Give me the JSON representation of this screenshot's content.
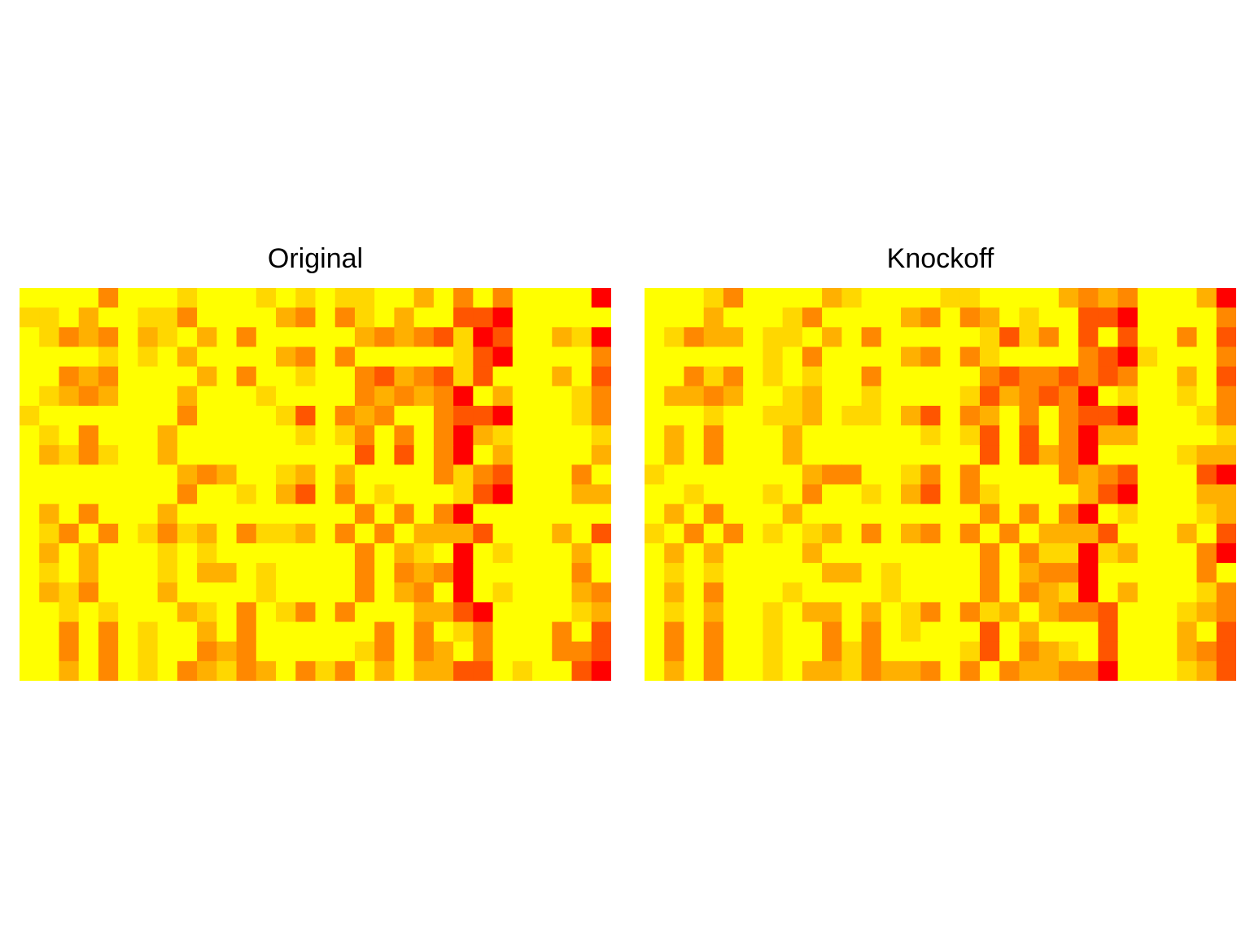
{
  "chart_data": [
    {
      "type": "heatmap",
      "title": "Original",
      "colors": [
        "#FFFF00",
        "#FFD700",
        "#FFB000",
        "#FF8800",
        "#FF5500",
        "#FF0000"
      ],
      "n_rows": 20,
      "n_cols": 30,
      "grid": false,
      "values": [
        [
          0,
          0,
          0,
          0,
          3,
          0,
          0,
          0,
          1,
          0,
          0,
          0,
          1,
          0,
          1,
          0,
          1,
          1,
          0,
          0,
          2,
          0,
          3,
          0,
          3,
          0,
          0,
          0,
          0,
          5
        ],
        [
          1,
          1,
          0,
          2,
          0,
          0,
          1,
          1,
          3,
          0,
          0,
          0,
          0,
          2,
          3,
          0,
          3,
          1,
          0,
          2,
          0,
          0,
          4,
          4,
          5,
          0,
          0,
          0,
          0,
          0
        ],
        [
          0,
          1,
          3,
          2,
          3,
          0,
          2,
          1,
          0,
          2,
          0,
          3,
          0,
          0,
          0,
          0,
          0,
          2,
          3,
          2,
          3,
          4,
          1,
          5,
          4,
          0,
          0,
          2,
          1,
          5
        ],
        [
          0,
          0,
          0,
          0,
          1,
          0,
          1,
          0,
          2,
          0,
          0,
          0,
          0,
          2,
          3,
          0,
          3,
          0,
          0,
          0,
          0,
          0,
          1,
          4,
          5,
          0,
          0,
          0,
          0,
          3
        ],
        [
          0,
          0,
          3,
          2,
          3,
          0,
          0,
          0,
          0,
          2,
          0,
          3,
          0,
          0,
          1,
          0,
          0,
          3,
          4,
          2,
          3,
          4,
          1,
          4,
          0,
          0,
          0,
          2,
          0,
          4
        ],
        [
          0,
          1,
          2,
          3,
          2,
          0,
          0,
          0,
          2,
          0,
          0,
          0,
          1,
          0,
          0,
          0,
          0,
          3,
          2,
          3,
          2,
          3,
          5,
          0,
          2,
          0,
          0,
          0,
          1,
          3
        ],
        [
          1,
          0,
          0,
          0,
          0,
          0,
          0,
          0,
          3,
          0,
          0,
          0,
          0,
          1,
          4,
          0,
          3,
          2,
          3,
          0,
          0,
          3,
          4,
          4,
          5,
          0,
          0,
          0,
          1,
          3
        ],
        [
          0,
          1,
          0,
          3,
          0,
          0,
          0,
          2,
          0,
          0,
          0,
          0,
          0,
          0,
          1,
          0,
          1,
          3,
          0,
          3,
          0,
          3,
          5,
          2,
          1,
          0,
          0,
          0,
          0,
          1
        ],
        [
          0,
          2,
          1,
          3,
          1,
          0,
          0,
          2,
          0,
          0,
          0,
          0,
          0,
          0,
          0,
          0,
          0,
          4,
          0,
          4,
          0,
          3,
          5,
          0,
          2,
          0,
          0,
          0,
          0,
          2
        ],
        [
          0,
          0,
          0,
          0,
          0,
          0,
          0,
          0,
          2,
          3,
          2,
          0,
          0,
          1,
          2,
          0,
          2,
          0,
          0,
          0,
          0,
          3,
          1,
          3,
          4,
          0,
          0,
          0,
          3,
          0
        ],
        [
          0,
          0,
          0,
          0,
          0,
          0,
          0,
          0,
          3,
          0,
          0,
          1,
          0,
          2,
          4,
          0,
          3,
          0,
          1,
          0,
          0,
          0,
          1,
          4,
          5,
          0,
          0,
          0,
          2,
          2
        ],
        [
          0,
          2,
          0,
          3,
          0,
          0,
          0,
          2,
          0,
          0,
          0,
          0,
          0,
          0,
          0,
          0,
          0,
          3,
          0,
          3,
          0,
          3,
          5,
          0,
          0,
          0,
          0,
          0,
          0,
          0
        ],
        [
          0,
          1,
          3,
          0,
          3,
          0,
          1,
          3,
          1,
          2,
          0,
          3,
          1,
          1,
          2,
          0,
          3,
          0,
          3,
          0,
          2,
          2,
          2,
          4,
          0,
          0,
          0,
          2,
          0,
          4
        ],
        [
          0,
          2,
          0,
          2,
          0,
          0,
          0,
          1,
          0,
          1,
          0,
          0,
          0,
          0,
          0,
          0,
          0,
          3,
          0,
          2,
          1,
          0,
          5,
          0,
          1,
          0,
          0,
          0,
          2,
          0
        ],
        [
          0,
          1,
          0,
          2,
          0,
          0,
          0,
          1,
          0,
          2,
          2,
          0,
          1,
          0,
          0,
          0,
          0,
          3,
          0,
          3,
          2,
          3,
          5,
          0,
          0,
          0,
          0,
          0,
          3,
          0
        ],
        [
          0,
          2,
          1,
          3,
          0,
          0,
          0,
          2,
          0,
          0,
          0,
          0,
          1,
          0,
          0,
          0,
          0,
          3,
          0,
          2,
          3,
          0,
          5,
          0,
          1,
          0,
          0,
          0,
          2,
          3
        ],
        [
          0,
          0,
          1,
          0,
          1,
          0,
          0,
          0,
          2,
          1,
          0,
          3,
          0,
          1,
          3,
          0,
          3,
          0,
          0,
          0,
          2,
          2,
          4,
          5,
          0,
          0,
          0,
          0,
          1,
          2
        ],
        [
          0,
          0,
          3,
          0,
          3,
          0,
          1,
          0,
          0,
          2,
          0,
          3,
          0,
          0,
          0,
          0,
          0,
          0,
          3,
          0,
          3,
          0,
          1,
          3,
          0,
          0,
          0,
          3,
          0,
          4
        ],
        [
          0,
          0,
          3,
          0,
          3,
          0,
          1,
          0,
          0,
          3,
          2,
          3,
          0,
          0,
          0,
          0,
          0,
          1,
          3,
          0,
          3,
          2,
          0,
          3,
          0,
          0,
          0,
          3,
          3,
          4
        ],
        [
          0,
          0,
          2,
          0,
          3,
          0,
          1,
          0,
          3,
          2,
          1,
          3,
          2,
          0,
          3,
          1,
          3,
          0,
          2,
          0,
          2,
          2,
          4,
          4,
          0,
          1,
          0,
          0,
          4,
          5
        ]
      ]
    },
    {
      "type": "heatmap",
      "title": "Knockoff",
      "colors": [
        "#FFFF00",
        "#FFD700",
        "#FFB000",
        "#FF8800",
        "#FF5500",
        "#FF0000"
      ],
      "n_rows": 20,
      "n_cols": 30,
      "grid": false,
      "values": [
        [
          0,
          0,
          0,
          1,
          3,
          0,
          0,
          0,
          0,
          2,
          1,
          0,
          0,
          0,
          0,
          1,
          1,
          0,
          0,
          0,
          0,
          2,
          3,
          2,
          3,
          0,
          0,
          0,
          2,
          5
        ],
        [
          0,
          0,
          0,
          2,
          0,
          0,
          0,
          1,
          3,
          0,
          0,
          0,
          0,
          2,
          3,
          0,
          3,
          2,
          0,
          1,
          0,
          0,
          4,
          4,
          5,
          0,
          0,
          0,
          0,
          3
        ],
        [
          0,
          1,
          3,
          2,
          2,
          0,
          1,
          1,
          0,
          2,
          0,
          3,
          0,
          0,
          0,
          0,
          0,
          1,
          4,
          1,
          3,
          0,
          4,
          0,
          4,
          0,
          0,
          3,
          0,
          4
        ],
        [
          0,
          0,
          0,
          0,
          0,
          0,
          1,
          0,
          3,
          0,
          0,
          0,
          0,
          2,
          3,
          0,
          3,
          1,
          0,
          0,
          0,
          0,
          3,
          4,
          5,
          1,
          0,
          0,
          0,
          3
        ],
        [
          0,
          0,
          3,
          1,
          3,
          0,
          1,
          0,
          1,
          0,
          0,
          3,
          0,
          0,
          0,
          0,
          0,
          3,
          4,
          3,
          3,
          4,
          3,
          4,
          3,
          0,
          0,
          2,
          0,
          4
        ],
        [
          0,
          2,
          2,
          3,
          2,
          0,
          0,
          1,
          2,
          0,
          0,
          1,
          0,
          0,
          0,
          0,
          1,
          4,
          2,
          3,
          4,
          3,
          5,
          0,
          1,
          0,
          0,
          1,
          0,
          3
        ],
        [
          0,
          0,
          0,
          1,
          0,
          0,
          1,
          1,
          2,
          0,
          1,
          1,
          0,
          2,
          4,
          0,
          3,
          2,
          0,
          3,
          0,
          3,
          4,
          4,
          5,
          0,
          0,
          0,
          1,
          3
        ],
        [
          0,
          2,
          0,
          3,
          0,
          0,
          0,
          2,
          0,
          0,
          0,
          0,
          0,
          0,
          1,
          0,
          1,
          4,
          0,
          4,
          0,
          3,
          5,
          2,
          2,
          0,
          0,
          0,
          0,
          1
        ],
        [
          0,
          2,
          0,
          3,
          0,
          0,
          0,
          2,
          0,
          0,
          0,
          0,
          0,
          0,
          0,
          0,
          0,
          4,
          0,
          4,
          2,
          3,
          5,
          0,
          0,
          0,
          0,
          1,
          2,
          2
        ],
        [
          1,
          0,
          0,
          0,
          0,
          0,
          0,
          0,
          2,
          3,
          3,
          0,
          0,
          1,
          3,
          0,
          3,
          0,
          0,
          0,
          0,
          3,
          2,
          3,
          4,
          0,
          0,
          0,
          4,
          5
        ],
        [
          0,
          0,
          1,
          0,
          0,
          0,
          1,
          0,
          3,
          0,
          0,
          1,
          0,
          2,
          4,
          0,
          3,
          1,
          0,
          0,
          0,
          0,
          2,
          4,
          5,
          0,
          0,
          0,
          2,
          2
        ],
        [
          0,
          2,
          0,
          3,
          0,
          0,
          0,
          2,
          0,
          0,
          0,
          0,
          0,
          0,
          0,
          0,
          0,
          3,
          0,
          3,
          0,
          3,
          5,
          0,
          1,
          0,
          0,
          0,
          1,
          2
        ],
        [
          1,
          0,
          3,
          0,
          3,
          0,
          1,
          0,
          1,
          2,
          0,
          3,
          0,
          2,
          3,
          0,
          3,
          0,
          3,
          0,
          2,
          2,
          2,
          4,
          0,
          0,
          0,
          2,
          0,
          4
        ],
        [
          0,
          2,
          0,
          2,
          0,
          0,
          0,
          0,
          2,
          0,
          0,
          0,
          0,
          0,
          0,
          0,
          0,
          3,
          0,
          3,
          1,
          1,
          5,
          1,
          2,
          0,
          0,
          0,
          3,
          5
        ],
        [
          0,
          1,
          0,
          1,
          0,
          0,
          0,
          0,
          0,
          2,
          2,
          0,
          1,
          0,
          0,
          0,
          0,
          3,
          0,
          2,
          3,
          3,
          5,
          0,
          0,
          0,
          0,
          0,
          3,
          0
        ],
        [
          0,
          2,
          0,
          3,
          0,
          0,
          0,
          1,
          0,
          0,
          0,
          0,
          1,
          0,
          0,
          0,
          0,
          3,
          0,
          3,
          2,
          1,
          5,
          0,
          2,
          0,
          0,
          0,
          1,
          3
        ],
        [
          0,
          1,
          0,
          2,
          0,
          0,
          1,
          0,
          2,
          2,
          0,
          2,
          0,
          1,
          3,
          0,
          3,
          1,
          2,
          0,
          2,
          3,
          3,
          4,
          0,
          0,
          0,
          1,
          2,
          3
        ],
        [
          0,
          3,
          0,
          3,
          0,
          0,
          1,
          0,
          0,
          3,
          0,
          3,
          0,
          1,
          0,
          0,
          0,
          4,
          0,
          2,
          0,
          0,
          0,
          4,
          0,
          0,
          0,
          2,
          0,
          4
        ],
        [
          0,
          3,
          0,
          3,
          0,
          0,
          1,
          0,
          0,
          3,
          1,
          3,
          0,
          0,
          0,
          0,
          1,
          4,
          0,
          3,
          2,
          1,
          0,
          4,
          0,
          0,
          0,
          2,
          3,
          4
        ],
        [
          0,
          2,
          0,
          3,
          0,
          0,
          1,
          0,
          2,
          2,
          1,
          3,
          2,
          2,
          3,
          0,
          3,
          0,
          3,
          2,
          2,
          3,
          3,
          5,
          0,
          0,
          0,
          1,
          2,
          4
        ]
      ]
    }
  ]
}
